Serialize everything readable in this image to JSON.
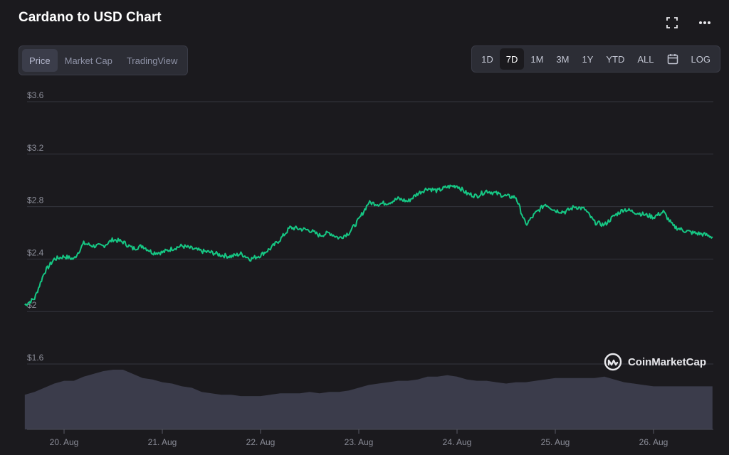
{
  "title": "Cardano to USD Chart",
  "view_tabs": [
    {
      "label": "Price",
      "active": true
    },
    {
      "label": "Market Cap",
      "active": false
    },
    {
      "label": "TradingView",
      "active": false
    }
  ],
  "range_tabs": [
    {
      "label": "1D",
      "active": false
    },
    {
      "label": "7D",
      "active": true
    },
    {
      "label": "1M",
      "active": false
    },
    {
      "label": "3M",
      "active": false
    },
    {
      "label": "1Y",
      "active": false
    },
    {
      "label": "YTD",
      "active": false
    },
    {
      "label": "ALL",
      "active": false
    }
  ],
  "calendar_icon": "calendar-icon",
  "log_label": "LOG",
  "brand": "CoinMarketCap",
  "colors": {
    "line": "#16c784",
    "volume": "#3b3c4b",
    "grid": "#34353d",
    "axis_text": "#8b8d98"
  },
  "chart_data": {
    "type": "line",
    "title": "Cardano to USD Chart",
    "x_ticks": [
      "20. Aug",
      "21. Aug",
      "22. Aug",
      "23. Aug",
      "24. Aug",
      "25. Aug",
      "26. Aug"
    ],
    "y_ticks": [
      "$1.6",
      "$2",
      "$2.4",
      "$2.8",
      "$3.2",
      "$3.6"
    ],
    "ylim": [
      1.6,
      3.6
    ],
    "grid": true,
    "series": [
      {
        "x": [
          19.6,
          19.7,
          19.8,
          19.9,
          20.0,
          20.1,
          20.2,
          20.3,
          20.4,
          20.5,
          20.6,
          20.7,
          20.8,
          20.9,
          21.0,
          21.1,
          21.2,
          21.3,
          21.4,
          21.5,
          21.6,
          21.7,
          21.8,
          21.9,
          22.0,
          22.1,
          22.2,
          22.3,
          22.4,
          22.5,
          22.6,
          22.7,
          22.8,
          22.9,
          23.0,
          23.1,
          23.2,
          23.3,
          23.4,
          23.5,
          23.6,
          23.7,
          23.8,
          23.9,
          24.0,
          24.1,
          24.2,
          24.3,
          24.4,
          24.5,
          24.6,
          24.7,
          24.8,
          24.9,
          25.0,
          25.1,
          25.2,
          25.3,
          25.4,
          25.5,
          25.6,
          25.7,
          25.8,
          25.9,
          26.0,
          26.1,
          26.2,
          26.3,
          26.4,
          26.5,
          26.6
        ],
        "values": [
          2.05,
          2.1,
          2.3,
          2.4,
          2.42,
          2.4,
          2.52,
          2.5,
          2.5,
          2.55,
          2.53,
          2.48,
          2.5,
          2.45,
          2.45,
          2.48,
          2.5,
          2.48,
          2.46,
          2.45,
          2.43,
          2.42,
          2.44,
          2.4,
          2.43,
          2.48,
          2.55,
          2.64,
          2.63,
          2.62,
          2.58,
          2.6,
          2.56,
          2.6,
          2.7,
          2.83,
          2.82,
          2.83,
          2.86,
          2.84,
          2.9,
          2.94,
          2.92,
          2.95,
          2.96,
          2.9,
          2.88,
          2.92,
          2.9,
          2.88,
          2.87,
          2.66,
          2.75,
          2.82,
          2.77,
          2.76,
          2.8,
          2.78,
          2.68,
          2.66,
          2.73,
          2.78,
          2.76,
          2.74,
          2.72,
          2.76,
          2.65,
          2.62,
          2.6,
          2.59,
          2.57
        ]
      }
    ],
    "volume": [
      1.45,
      1.47,
      1.5,
      1.53,
      1.55,
      1.55,
      1.58,
      1.6,
      1.62,
      1.63,
      1.63,
      1.6,
      1.57,
      1.56,
      1.54,
      1.53,
      1.51,
      1.5,
      1.47,
      1.46,
      1.45,
      1.45,
      1.44,
      1.44,
      1.44,
      1.45,
      1.46,
      1.46,
      1.46,
      1.47,
      1.46,
      1.47,
      1.47,
      1.48,
      1.5,
      1.52,
      1.53,
      1.54,
      1.55,
      1.55,
      1.56,
      1.58,
      1.58,
      1.59,
      1.58,
      1.56,
      1.55,
      1.55,
      1.54,
      1.53,
      1.54,
      1.54,
      1.55,
      1.56,
      1.57,
      1.57,
      1.57,
      1.57,
      1.57,
      1.58,
      1.56,
      1.54,
      1.53,
      1.52,
      1.51,
      1.51,
      1.51,
      1.51,
      1.51,
      1.51,
      1.51
    ]
  }
}
